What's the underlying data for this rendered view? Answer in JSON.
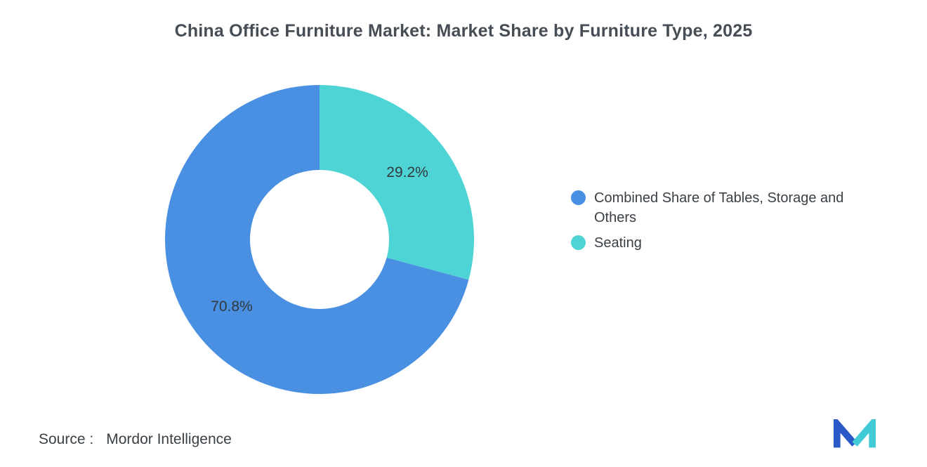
{
  "chart_data": {
    "type": "pie",
    "subtype": "donut",
    "title": "China Office Furniture Market: Market Share by Furniture Type, 2025",
    "unit": "%",
    "slices": [
      {
        "label": "Combined Share of Tables, Storage and Others",
        "value": 70.8,
        "display": "70.8%",
        "color": "#4a90e2"
      },
      {
        "label": "Seating",
        "value": 29.2,
        "display": "29.2%",
        "color": "#4ed4d4"
      }
    ],
    "start_angle_deg": 0,
    "direction": "clockwise-from-top-seating-first",
    "inner_radius_ratio": 0.45,
    "legend_position": "right",
    "grid": false,
    "label_color": "#33383d"
  },
  "source": {
    "label": "Source :",
    "value": "Mordor Intelligence"
  },
  "logo": {
    "name": "mordor-intelligence-logo",
    "color_left": "#2b59c8",
    "color_right": "#41cbd7"
  }
}
